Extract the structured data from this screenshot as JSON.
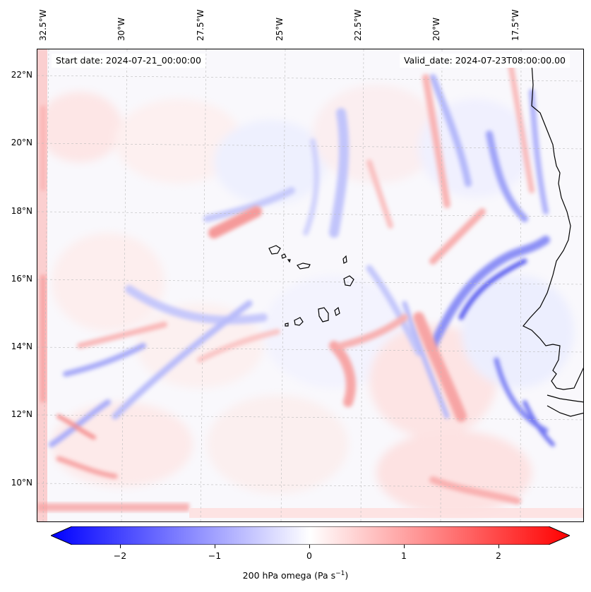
{
  "map": {
    "start_date": "Start date: 2024-07-21_00:00:00",
    "valid_date": "Valid_date: 2024-07-23T08:00:00.00",
    "lon_labels": [
      "32.5°W",
      "30°W",
      "27.5°W",
      "25°W",
      "22.5°W",
      "20°W",
      "17.5°W"
    ],
    "lat_labels": [
      "22°N",
      "20°N",
      "18°N",
      "16°N",
      "14°N",
      "12°N",
      "10°N"
    ],
    "variable": "200 hPa omega",
    "units": "Pa s",
    "units_exponent": "−1",
    "colormap": [
      "#0000ff",
      "#ffffff",
      "#ff0000"
    ],
    "coastline_color": "#000000"
  },
  "colorbar": {
    "ticks": [
      "−2",
      "−1",
      "0",
      "1",
      "2"
    ],
    "range": [
      -2.75,
      2.75
    ]
  }
}
